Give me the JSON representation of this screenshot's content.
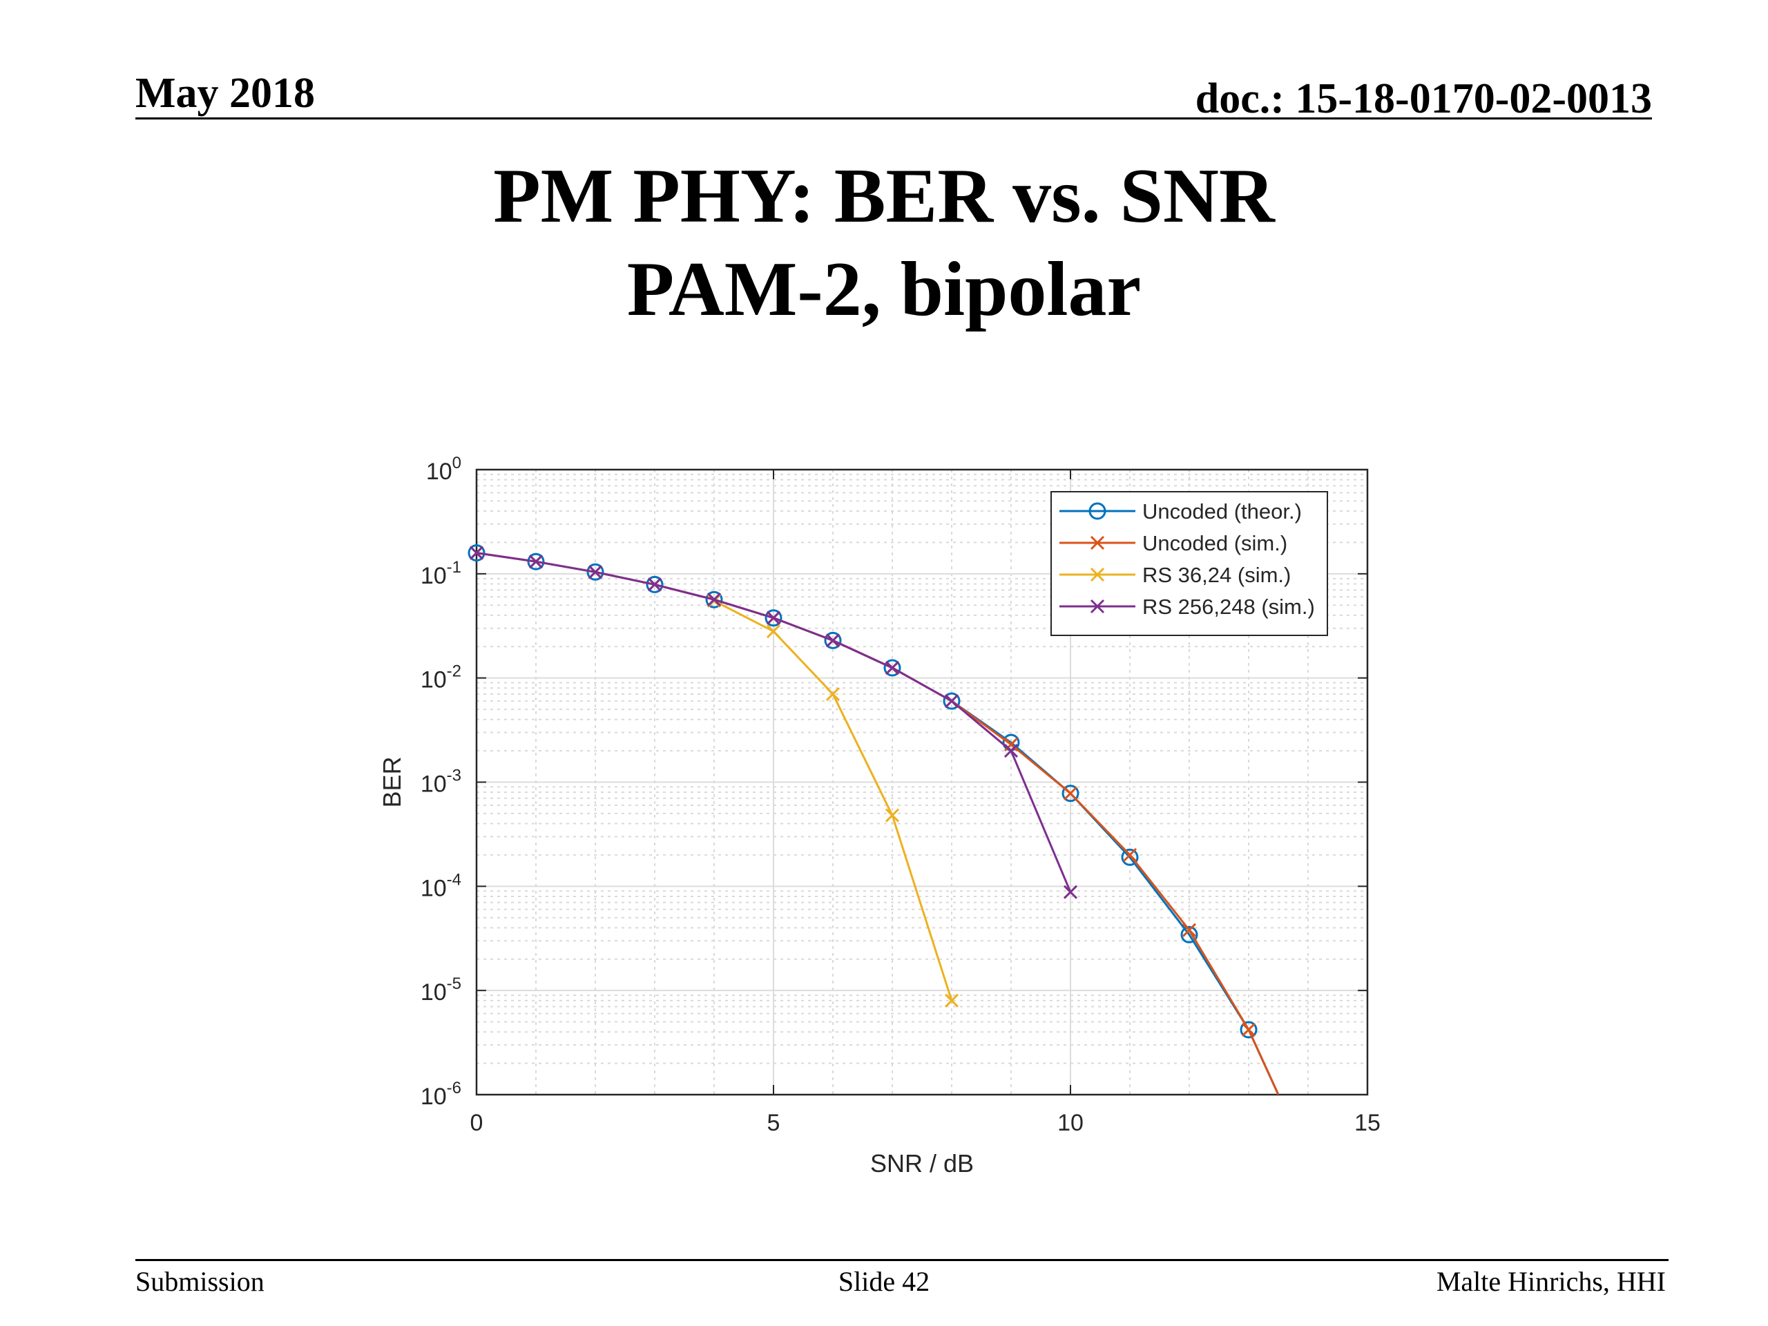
{
  "header": {
    "date": "May 2018",
    "doc": "doc.: 15-18-0170-02-0013"
  },
  "title": {
    "line1": "PM PHY: BER vs. SNR",
    "line2": "PAM-2, bipolar"
  },
  "footer": {
    "left": "Submission",
    "center": "Slide 42",
    "right": "Malte Hinrichs, HHI"
  },
  "chart_data": {
    "type": "line",
    "title": "",
    "xlabel": "SNR / dB",
    "ylabel": "BER",
    "xlim": [
      0,
      15
    ],
    "ylim": [
      1e-06,
      1
    ],
    "yscale": "log",
    "xticks": [
      0,
      5,
      10,
      15
    ],
    "xtick_labels": [
      "0",
      "5",
      "10",
      "15"
    ],
    "yticks": [
      1,
      0.1,
      0.01,
      0.001,
      0.0001,
      1e-05,
      1e-06
    ],
    "ytick_labels": [
      {
        "base": "10",
        "exp": "0"
      },
      {
        "base": "10",
        "exp": "-1"
      },
      {
        "base": "10",
        "exp": "-2"
      },
      {
        "base": "10",
        "exp": "-3"
      },
      {
        "base": "10",
        "exp": "-4"
      },
      {
        "base": "10",
        "exp": "-5"
      },
      {
        "base": "10",
        "exp": "-6"
      }
    ],
    "grid": true,
    "minor_grid": true,
    "legend_position": "top-right",
    "series": [
      {
        "name": "Uncoded (theor.)",
        "color": "#0072BD",
        "marker": "circle",
        "x": [
          0,
          1,
          2,
          3,
          4,
          5,
          6,
          7,
          8,
          9,
          10,
          11,
          12,
          13,
          13.5
        ],
        "y": [
          0.1587,
          0.1309,
          0.104,
          0.0789,
          0.0565,
          0.0377,
          0.0229,
          0.0125,
          0.006,
          0.0024,
          0.00078,
          0.00019,
          3.43e-05,
          4.2e-06,
          1e-06
        ],
        "marker_count": 14
      },
      {
        "name": "Uncoded (sim.)",
        "color": "#D95319",
        "marker": "x",
        "x": [
          0,
          1,
          2,
          3,
          4,
          5,
          6,
          7,
          8,
          9,
          10,
          11,
          12,
          13,
          13.5
        ],
        "y": [
          0.1587,
          0.1309,
          0.104,
          0.0789,
          0.0565,
          0.0377,
          0.0229,
          0.0125,
          0.006,
          0.0023,
          0.00078,
          0.0002,
          3.8e-05,
          4.2e-06,
          1e-06
        ],
        "marker_count": 14
      },
      {
        "name": "RS 36,24 (sim.)",
        "color": "#EDB120",
        "marker": "x",
        "x": [
          4,
          5,
          6,
          7,
          8
        ],
        "y": [
          0.055,
          0.028,
          0.007,
          0.00048,
          8e-06
        ]
      },
      {
        "name": "RS 256,248 (sim.)",
        "color": "#7E2F8E",
        "marker": "x",
        "x": [
          0,
          1,
          2,
          3,
          4,
          5,
          6,
          7,
          8,
          9,
          10
        ],
        "y": [
          0.1587,
          0.1309,
          0.104,
          0.0789,
          0.0565,
          0.0377,
          0.0229,
          0.0125,
          0.006,
          0.002,
          8.8e-05
        ]
      }
    ]
  }
}
